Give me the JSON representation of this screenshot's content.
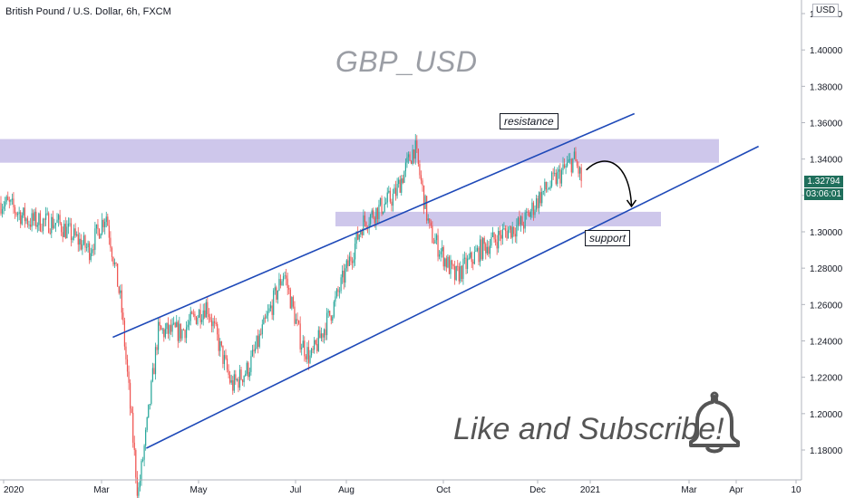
{
  "header": {
    "symbol_title": "British Pound / U.S. Dollar, 6h, FXCM",
    "currency": "USD"
  },
  "watermark": "GBP_USD",
  "annotations": {
    "resistance": "resistance",
    "support": "support",
    "call_to_action": "Like and Subscribe!"
  },
  "price_scale": {
    "last_price": "1.32794",
    "countdown": "03:06:01"
  },
  "colors": {
    "up": "#26a69a",
    "down": "#ef5350",
    "zone": "#c5bde8",
    "channel": "#1e49b8",
    "price_tag": "#1f6f5c"
  },
  "icons": {
    "notification": "bell-icon"
  },
  "chart_data": {
    "type": "candlestick",
    "title": "British Pound / U.S. Dollar, 6h, FXCM",
    "y_ticks": [
      "1.18000",
      "1.20000",
      "1.22000",
      "1.24000",
      "1.26000",
      "1.28000",
      "1.30000",
      "1.32000",
      "1.34000",
      "1.36000",
      "1.38000",
      "1.40000",
      "1.42000"
    ],
    "ylim": [
      1.17,
      1.425
    ],
    "x_ticks": [
      "2020",
      "Mar",
      "May",
      "Jul",
      "Aug",
      "Oct",
      "Dec",
      "2021",
      "Mar",
      "Apr",
      "10"
    ],
    "price_path": [
      [
        "2020-01-01",
        1.316
      ],
      [
        "2020-01-15",
        1.306
      ],
      [
        "2020-02-01",
        1.305
      ],
      [
        "2020-02-20",
        1.29
      ],
      [
        "2020-03-01",
        1.31
      ],
      [
        "2020-03-10",
        1.26
      ],
      [
        "2020-03-20",
        1.155
      ],
      [
        "2020-03-25",
        1.19
      ],
      [
        "2020-04-01",
        1.245
      ],
      [
        "2020-04-15",
        1.245
      ],
      [
        "2020-04-30",
        1.26
      ],
      [
        "2020-05-15",
        1.215
      ],
      [
        "2020-05-25",
        1.225
      ],
      [
        "2020-06-10",
        1.265
      ],
      [
        "2020-06-15",
        1.278
      ],
      [
        "2020-06-25",
        1.24
      ],
      [
        "2020-07-01",
        1.23
      ],
      [
        "2020-07-15",
        1.26
      ],
      [
        "2020-08-01",
        1.305
      ],
      [
        "2020-08-20",
        1.32
      ],
      [
        "2020-09-01",
        1.347
      ],
      [
        "2020-09-10",
        1.3
      ],
      [
        "2020-09-25",
        1.275
      ],
      [
        "2020-10-10",
        1.29
      ],
      [
        "2020-10-25",
        1.3
      ],
      [
        "2020-11-05",
        1.305
      ],
      [
        "2020-11-15",
        1.32
      ],
      [
        "2020-11-25",
        1.33
      ],
      [
        "2020-12-05",
        1.34
      ],
      [
        "2020-12-10",
        1.32794
      ]
    ],
    "last_value": 1.32794,
    "zones": [
      {
        "name": "resistance",
        "low": 1.338,
        "high": 1.351
      },
      {
        "name": "support",
        "low": 1.303,
        "high": 1.311
      }
    ],
    "channel_lines": [
      {
        "name": "upper",
        "from": [
          "2020-03-05",
          1.242
        ],
        "to": [
          "2021-01-10",
          1.365
        ]
      },
      {
        "name": "lower",
        "from": [
          "2020-03-25",
          1.181
        ],
        "to": [
          "2021-03-25",
          1.347
        ]
      }
    ],
    "projection_arrow": {
      "from": [
        "2020-12-15",
        1.339
      ],
      "to": [
        "2021-01-05",
        1.312
      ]
    }
  }
}
